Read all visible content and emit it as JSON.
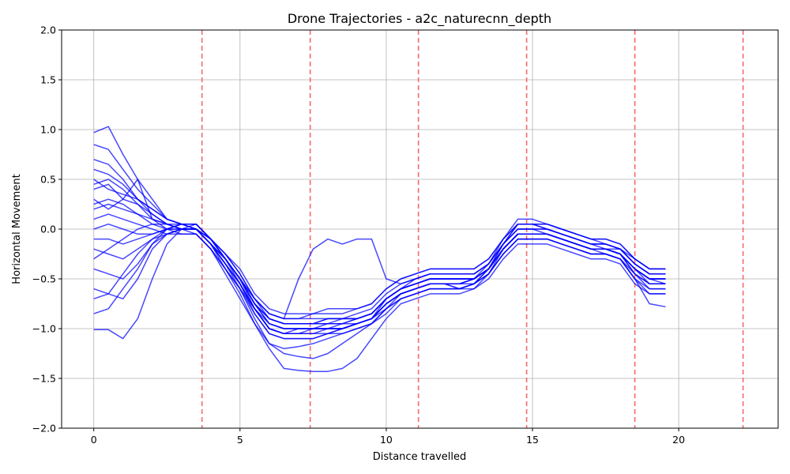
{
  "chart_data": {
    "type": "line",
    "title": "Drone Trajectories - a2c_naturecnn_depth",
    "xlabel": "Distance travelled",
    "ylabel": "Horizontal Movement",
    "xlim": [
      -1.1,
      23.4
    ],
    "ylim": [
      -2.0,
      2.0
    ],
    "xticks": [
      0,
      5,
      10,
      15,
      20
    ],
    "xtick_labels": [
      "0",
      "5",
      "10",
      "15",
      "20"
    ],
    "yticks": [
      2.0,
      1.5,
      1.0,
      0.5,
      0.0,
      -0.5,
      -1.0,
      -1.5,
      -2.0
    ],
    "ytick_labels": [
      "2.0",
      "1.5",
      "1.0",
      "0.5",
      "0.0",
      "−0.5",
      "−1.0",
      "−1.5",
      "−2.0"
    ],
    "grid": true,
    "line_color": "#0000ff",
    "line_opacity": 0.72,
    "marker_line_color": "#f26b6b",
    "marker_lines_x": [
      3.7,
      7.4,
      11.1,
      14.8,
      18.5,
      22.2
    ],
    "trajectory_x": [
      0,
      0.5,
      1,
      1.5,
      2,
      2.5,
      3,
      3.5,
      4,
      4.5,
      5,
      5.5,
      6,
      6.5,
      7,
      7.5,
      8,
      8.5,
      9,
      9.5,
      10,
      10.5,
      11,
      11.5,
      12,
      12.5,
      13,
      13.5,
      14,
      14.5,
      15,
      15.5,
      16,
      16.5,
      17,
      17.5,
      18,
      18.5,
      19,
      19.55
    ],
    "mean_path_y": [
      0.0,
      -0.05,
      -0.1,
      -0.1,
      -0.05,
      0.0,
      0.0,
      0.0,
      -0.15,
      -0.3,
      -0.5,
      -0.75,
      -0.9,
      -0.95,
      -0.95,
      -0.95,
      -0.95,
      -0.95,
      -0.9,
      -0.85,
      -0.7,
      -0.6,
      -0.55,
      -0.5,
      -0.5,
      -0.52,
      -0.5,
      -0.4,
      -0.2,
      -0.05,
      -0.05,
      -0.05,
      -0.1,
      -0.15,
      -0.2,
      -0.2,
      -0.25,
      -0.4,
      -0.5,
      -0.5
    ],
    "trajectories": [
      {
        "y": [
          0.97,
          1.03,
          0.75,
          0.5,
          0.3,
          0.1,
          0.05,
          0.0,
          -0.1,
          -0.3,
          -0.5,
          -0.8,
          -1.0,
          -1.05,
          -1.05,
          -1.0,
          -1.0,
          -1.0,
          -0.95,
          -0.9,
          -0.7,
          -0.6,
          -0.55,
          -0.5,
          -0.5,
          -0.5,
          -0.5,
          -0.4,
          -0.2,
          -0.05,
          -0.05,
          -0.05,
          -0.1,
          -0.15,
          -0.2,
          -0.2,
          -0.25,
          -0.4,
          -0.5,
          -0.5
        ]
      },
      {
        "y": [
          -1.01,
          -1.01,
          -1.1,
          -0.9,
          -0.5,
          -0.15,
          0.0,
          0.05,
          -0.1,
          -0.3,
          -0.55,
          -0.8,
          -1.0,
          -1.05,
          -1.0,
          -1.0,
          -0.95,
          -0.95,
          -0.9,
          -0.85,
          -0.7,
          -0.6,
          -0.55,
          -0.5,
          -0.5,
          -0.5,
          -0.5,
          -0.4,
          -0.2,
          -0.05,
          -0.05,
          -0.05,
          -0.1,
          -0.15,
          -0.2,
          -0.2,
          -0.25,
          -0.45,
          -0.55,
          -0.55
        ]
      },
      {
        "y": [
          0.85,
          0.8,
          0.6,
          0.4,
          0.25,
          0.1,
          0.05,
          0.0,
          -0.15,
          -0.35,
          -0.6,
          -0.9,
          -1.15,
          -1.25,
          -1.28,
          -1.3,
          -1.25,
          -1.15,
          -1.05,
          -0.95,
          -0.8,
          -0.65,
          -0.6,
          -0.55,
          -0.55,
          -0.55,
          -0.55,
          -0.4,
          -0.15,
          0.0,
          0.0,
          -0.05,
          -0.1,
          -0.15,
          -0.2,
          -0.2,
          -0.25,
          -0.4,
          -0.5,
          -0.55
        ]
      },
      {
        "y": [
          0.6,
          0.55,
          0.45,
          0.3,
          0.2,
          0.1,
          0.05,
          0.05,
          -0.1,
          -0.25,
          -0.45,
          -0.7,
          -0.9,
          -0.95,
          -0.95,
          -0.95,
          -0.9,
          -0.9,
          -0.9,
          -0.85,
          -0.7,
          -0.6,
          -0.5,
          -0.45,
          -0.45,
          -0.45,
          -0.45,
          -0.35,
          -0.15,
          0.05,
          0.05,
          0.0,
          -0.05,
          -0.1,
          -0.15,
          -0.2,
          -0.2,
          -0.3,
          -0.4,
          -0.4
        ]
      },
      {
        "y": [
          0.4,
          0.45,
          0.3,
          0.25,
          0.15,
          0.05,
          0.0,
          0.0,
          -0.1,
          -0.3,
          -0.5,
          -0.75,
          -0.95,
          -1.0,
          -1.0,
          -1.0,
          -1.0,
          -1.0,
          -0.95,
          -0.9,
          -0.75,
          -0.65,
          -0.6,
          -0.55,
          -0.55,
          -0.55,
          -0.5,
          -0.4,
          -0.2,
          -0.05,
          -0.05,
          -0.05,
          -0.1,
          -0.15,
          -0.2,
          -0.2,
          -0.25,
          -0.45,
          -0.6,
          -0.6
        ]
      },
      {
        "y": [
          0.2,
          0.25,
          0.2,
          0.15,
          0.1,
          0.05,
          0.0,
          0.0,
          -0.15,
          -0.3,
          -0.5,
          -0.7,
          -0.85,
          -0.9,
          -0.9,
          -0.9,
          -0.9,
          -0.9,
          -0.85,
          -0.8,
          -0.65,
          -0.55,
          -0.5,
          -0.45,
          -0.45,
          -0.45,
          -0.45,
          -0.35,
          -0.15,
          0.0,
          0.0,
          0.0,
          -0.05,
          -0.1,
          -0.15,
          -0.15,
          -0.2,
          -0.35,
          -0.45,
          -0.45
        ]
      },
      {
        "y": [
          0.0,
          0.05,
          0.0,
          -0.05,
          -0.05,
          0.0,
          0.0,
          0.0,
          -0.15,
          -0.35,
          -0.55,
          -0.8,
          -1.0,
          -1.05,
          -1.05,
          -1.05,
          -1.05,
          -1.0,
          -0.95,
          -0.9,
          -0.75,
          -0.65,
          -0.6,
          -0.55,
          -0.55,
          -0.6,
          -0.55,
          -0.45,
          -0.25,
          -0.1,
          -0.1,
          -0.1,
          -0.15,
          -0.2,
          -0.25,
          -0.25,
          -0.3,
          -0.5,
          -0.6,
          -0.6
        ]
      },
      {
        "y": [
          -0.2,
          -0.25,
          -0.3,
          -0.2,
          -0.1,
          -0.05,
          0.0,
          0.0,
          -0.15,
          -0.3,
          -0.5,
          -0.75,
          -0.9,
          -0.95,
          -0.95,
          -0.95,
          -0.95,
          -0.95,
          -0.9,
          -0.85,
          -0.7,
          -0.6,
          -0.55,
          -0.5,
          -0.5,
          -0.5,
          -0.5,
          -0.4,
          -0.2,
          -0.05,
          -0.05,
          -0.05,
          -0.1,
          -0.15,
          -0.2,
          -0.2,
          -0.25,
          -0.4,
          -0.5,
          -0.5
        ]
      },
      {
        "y": [
          -0.4,
          -0.45,
          -0.5,
          -0.35,
          -0.15,
          -0.05,
          0.0,
          0.0,
          -0.1,
          -0.3,
          -0.5,
          -0.75,
          -0.95,
          -1.0,
          -1.0,
          -1.0,
          -1.0,
          -1.0,
          -0.95,
          -0.9,
          -0.75,
          -0.65,
          -0.6,
          -0.55,
          -0.55,
          -0.55,
          -0.5,
          -0.4,
          -0.2,
          -0.05,
          -0.05,
          -0.05,
          -0.1,
          -0.15,
          -0.2,
          -0.2,
          -0.25,
          -0.4,
          -0.55,
          -0.55
        ]
      },
      {
        "y": [
          -0.6,
          -0.65,
          -0.7,
          -0.5,
          -0.2,
          -0.05,
          0.0,
          0.0,
          -0.15,
          -0.35,
          -0.55,
          -0.8,
          -1.0,
          -1.05,
          -1.05,
          -1.05,
          -1.0,
          -1.0,
          -0.95,
          -0.9,
          -0.75,
          -0.65,
          -0.6,
          -0.55,
          -0.55,
          -0.6,
          -0.55,
          -0.45,
          -0.25,
          -0.1,
          -0.1,
          -0.1,
          -0.15,
          -0.2,
          -0.25,
          -0.25,
          -0.3,
          -0.5,
          -0.65,
          -0.65
        ]
      },
      {
        "y": [
          -0.85,
          -0.8,
          -0.6,
          -0.4,
          -0.15,
          0.0,
          0.05,
          0.05,
          -0.1,
          -0.3,
          -0.5,
          -0.75,
          -0.9,
          -0.95,
          -0.95,
          -0.95,
          -0.9,
          -0.9,
          -0.9,
          -0.85,
          -0.7,
          -0.6,
          -0.55,
          -0.5,
          -0.5,
          -0.5,
          -0.5,
          -0.4,
          -0.2,
          -0.05,
          -0.05,
          -0.05,
          -0.1,
          -0.15,
          -0.2,
          -0.2,
          -0.25,
          -0.4,
          -0.5,
          -0.5
        ]
      },
      {
        "y": [
          0.5,
          0.4,
          0.35,
          0.3,
          0.2,
          0.1,
          0.05,
          0.0,
          -0.15,
          -0.4,
          -0.65,
          -0.95,
          -1.2,
          -1.4,
          -1.42,
          -1.43,
          -1.43,
          -1.4,
          -1.3,
          -1.1,
          -0.9,
          -0.75,
          -0.7,
          -0.65,
          -0.65,
          -0.65,
          -0.6,
          -0.45,
          -0.2,
          -0.05,
          -0.05,
          -0.05,
          -0.1,
          -0.15,
          -0.2,
          -0.25,
          -0.3,
          -0.5,
          -0.75,
          -0.78
        ]
      },
      {
        "y": [
          0.3,
          0.2,
          0.3,
          0.5,
          0.1,
          0.05,
          0.05,
          0.05,
          -0.1,
          -0.25,
          -0.45,
          -0.7,
          -0.85,
          -0.9,
          -0.5,
          -0.2,
          -0.1,
          -0.15,
          -0.1,
          -0.1,
          -0.5,
          -0.55,
          -0.5,
          -0.45,
          -0.45,
          -0.45,
          -0.45,
          -0.35,
          -0.15,
          0.0,
          0.0,
          0.0,
          -0.05,
          -0.1,
          -0.15,
          -0.15,
          -0.2,
          -0.35,
          -0.45,
          -0.45
        ]
      },
      {
        "y": [
          -0.3,
          -0.2,
          -0.1,
          0.0,
          0.05,
          0.05,
          0.0,
          0.0,
          -0.15,
          -0.35,
          -0.55,
          -0.85,
          -1.05,
          -1.1,
          -1.1,
          -1.1,
          -1.05,
          -1.05,
          -1.0,
          -0.95,
          -0.85,
          -0.7,
          -0.65,
          -0.6,
          -0.6,
          -0.6,
          -0.6,
          -0.5,
          -0.3,
          -0.15,
          -0.15,
          -0.15,
          -0.2,
          -0.25,
          -0.3,
          -0.3,
          -0.35,
          -0.55,
          -0.65,
          -0.65
        ]
      },
      {
        "y": [
          0.7,
          0.65,
          0.5,
          0.3,
          0.15,
          0.05,
          0.0,
          -0.05,
          -0.2,
          -0.4,
          -0.6,
          -0.85,
          -1.05,
          -1.1,
          -1.1,
          -1.1,
          -1.05,
          -1.0,
          -0.95,
          -0.9,
          -0.75,
          -0.65,
          -0.6,
          -0.55,
          -0.55,
          -0.55,
          -0.5,
          -0.35,
          -0.1,
          0.1,
          0.1,
          0.05,
          0.0,
          -0.05,
          -0.1,
          -0.15,
          -0.2,
          -0.35,
          -0.45,
          -0.45
        ]
      },
      {
        "y": [
          0.1,
          0.15,
          0.1,
          0.05,
          0.0,
          -0.05,
          -0.05,
          -0.05,
          -0.2,
          -0.4,
          -0.6,
          -0.8,
          -0.95,
          -1.0,
          -1.0,
          -1.0,
          -1.0,
          -0.95,
          -0.95,
          -0.9,
          -0.8,
          -0.7,
          -0.65,
          -0.6,
          -0.6,
          -0.6,
          -0.55,
          -0.45,
          -0.25,
          -0.1,
          -0.1,
          -0.1,
          -0.15,
          -0.2,
          -0.25,
          -0.25,
          -0.3,
          -0.45,
          -0.55,
          -0.55
        ]
      },
      {
        "y": [
          -0.1,
          -0.1,
          -0.15,
          -0.1,
          -0.05,
          0.0,
          0.05,
          0.05,
          -0.1,
          -0.25,
          -0.4,
          -0.65,
          -0.8,
          -0.85,
          -0.85,
          -0.85,
          -0.85,
          -0.85,
          -0.8,
          -0.75,
          -0.6,
          -0.5,
          -0.45,
          -0.4,
          -0.4,
          -0.4,
          -0.4,
          -0.3,
          -0.1,
          0.05,
          0.05,
          0.05,
          0.0,
          -0.05,
          -0.1,
          -0.1,
          -0.15,
          -0.3,
          -0.4,
          -0.4
        ]
      },
      {
        "y": [
          0.45,
          0.5,
          0.4,
          0.25,
          0.1,
          0.0,
          -0.05,
          -0.05,
          -0.2,
          -0.45,
          -0.7,
          -0.95,
          -1.15,
          -1.2,
          -1.18,
          -1.15,
          -1.1,
          -1.05,
          -1.0,
          -0.95,
          -0.8,
          -0.7,
          -0.65,
          -0.6,
          -0.6,
          -0.6,
          -0.55,
          -0.4,
          -0.15,
          0.05,
          0.05,
          0.0,
          -0.05,
          -0.1,
          -0.15,
          -0.15,
          -0.2,
          -0.35,
          -0.45,
          -0.45
        ]
      },
      {
        "y": [
          -0.7,
          -0.65,
          -0.45,
          -0.25,
          -0.1,
          0.0,
          0.05,
          0.05,
          -0.1,
          -0.3,
          -0.5,
          -0.75,
          -0.9,
          -0.95,
          -0.95,
          -0.95,
          -0.95,
          -0.9,
          -0.9,
          -0.85,
          -0.7,
          -0.6,
          -0.55,
          -0.5,
          -0.5,
          -0.5,
          -0.5,
          -0.4,
          -0.2,
          -0.05,
          -0.05,
          -0.05,
          -0.1,
          -0.15,
          -0.2,
          -0.2,
          -0.25,
          -0.4,
          -0.5,
          -0.5
        ]
      },
      {
        "y": [
          0.25,
          0.3,
          0.25,
          0.15,
          0.05,
          0.0,
          0.0,
          0.0,
          -0.15,
          -0.3,
          -0.5,
          -0.7,
          -0.85,
          -0.9,
          -0.9,
          -0.85,
          -0.8,
          -0.8,
          -0.8,
          -0.75,
          -0.6,
          -0.5,
          -0.45,
          -0.4,
          -0.4,
          -0.4,
          -0.4,
          -0.3,
          -0.1,
          0.05,
          0.05,
          0.05,
          0.0,
          -0.05,
          -0.1,
          -0.1,
          -0.15,
          -0.3,
          -0.4,
          -0.4
        ]
      }
    ]
  }
}
